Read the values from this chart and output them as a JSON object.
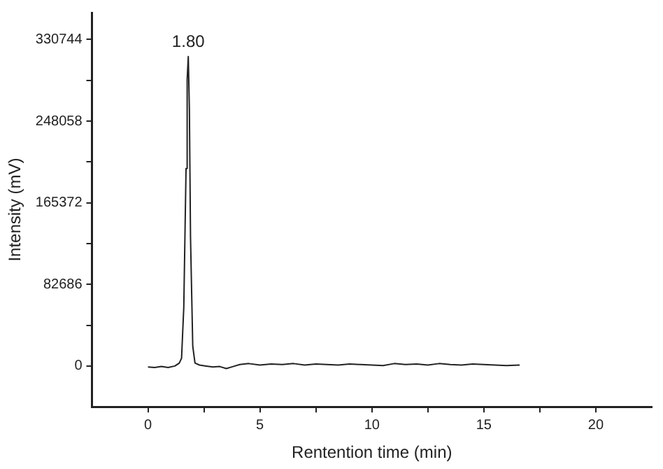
{
  "chart_data": {
    "type": "line",
    "xlabel": "Rentention time (min)",
    "ylabel": "Intensity (mV)",
    "x": [
      0,
      0.3,
      0.6,
      0.9,
      1.2,
      1.4,
      1.5,
      1.6,
      1.7,
      1.75,
      1.8,
      1.85,
      1.9,
      2.0,
      2.1,
      2.3,
      2.6,
      2.9,
      3.2,
      3.5,
      3.8,
      4.1,
      4.5,
      5.0,
      5.5,
      6.0,
      6.5,
      7.0,
      7.5,
      8.0,
      8.5,
      9.0,
      9.5,
      10.0,
      10.5,
      11.0,
      11.5,
      12.0,
      12.5,
      13.0,
      13.5,
      14.0,
      14.5,
      15.0,
      15.5,
      16.0,
      16.6
    ],
    "series": [
      {
        "color": "#222222",
        "values": [
          -1000,
          -1500,
          -500,
          -1500,
          0,
          3000,
          8000,
          60000,
          200000,
          290000,
          313500,
          260000,
          130000,
          20000,
          3000,
          1000,
          0,
          -1000,
          -500,
          -2500,
          -500,
          1500,
          2500,
          1000,
          2000,
          1500,
          2500,
          1000,
          2000,
          1500,
          1000,
          2000,
          1500,
          1000,
          500,
          2500,
          1500,
          2000,
          1000,
          2500,
          1500,
          1000,
          2000,
          1500,
          1000,
          500,
          1000
        ]
      }
    ],
    "xlim": [
      -2.5,
      22.5
    ],
    "xticks": [
      0,
      {
        "value": 2.5,
        "label": null
      },
      5,
      {
        "value": 7.5,
        "label": null
      },
      10,
      {
        "value": 12.5,
        "label": null
      },
      15,
      {
        "value": 17.5,
        "label": null
      },
      20
    ],
    "ylim": [
      -41343,
      358000
    ],
    "yticks": [
      0,
      {
        "value": 41343,
        "label": null
      },
      82686,
      {
        "value": 124029,
        "label": null
      },
      165372,
      {
        "value": 206715,
        "label": null
      },
      248058,
      {
        "value": 289401,
        "label": null
      },
      330744
    ],
    "annotations": [
      {
        "text": "1.80",
        "x": 1.8,
        "y": 313500
      }
    ],
    "grid": false,
    "legend": false,
    "marker": "none",
    "line_style": "solid"
  }
}
